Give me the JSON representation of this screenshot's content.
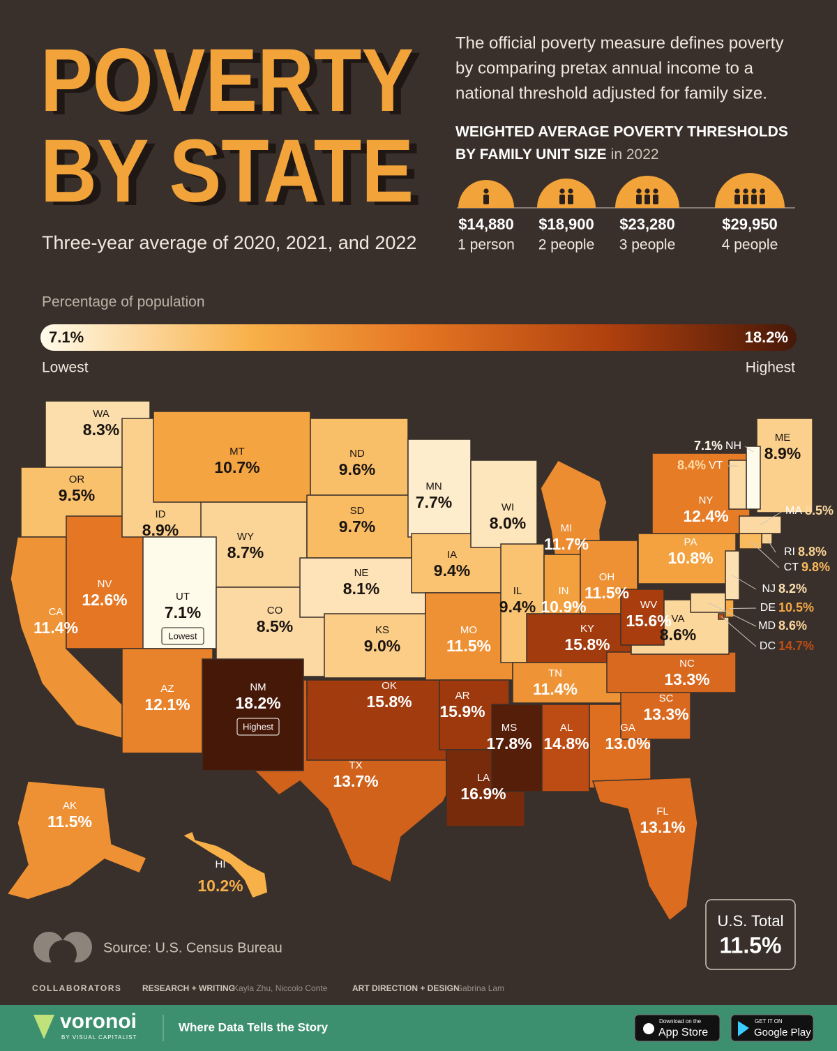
{
  "header": {
    "title_line1": "POVERTY",
    "title_line2": "BY STATE",
    "subtitle": "Three-year average of 2020, 2021, and 2022",
    "description": [
      "The official poverty measure defines poverty",
      "by comparing pretax annual income to a",
      "national threshold adjusted for family size."
    ]
  },
  "thresholds": {
    "heading_line1": "WEIGHTED AVERAGE POVERTY THRESHOLDS",
    "heading_line2": "BY FAMILY UNIT SIZE",
    "heading_suffix": "in 2022",
    "items": [
      {
        "amount": "$14,880",
        "size": "1 person"
      },
      {
        "amount": "$18,900",
        "size": "2 people"
      },
      {
        "amount": "$23,280",
        "size": "3 people"
      },
      {
        "amount": "$29,950",
        "size": "4 people"
      }
    ]
  },
  "legend": {
    "title": "Percentage of population",
    "min": {
      "value": 7.1,
      "label": "7.1%"
    },
    "max": {
      "value": 18.2,
      "label": "18.2%"
    },
    "min_text": "Lowest",
    "max_text": "Highest"
  },
  "states": [
    {
      "code": "WA",
      "value": 8.3,
      "label": "8.3%"
    },
    {
      "code": "OR",
      "value": 9.5,
      "label": "9.5%"
    },
    {
      "code": "CA",
      "value": 11.4,
      "label": "11.4%"
    },
    {
      "code": "NV",
      "value": 12.6,
      "label": "12.6%"
    },
    {
      "code": "ID",
      "value": 8.9,
      "label": "8.9%"
    },
    {
      "code": "MT",
      "value": 10.7,
      "label": "10.7%"
    },
    {
      "code": "WY",
      "value": 8.7,
      "label": "8.7%"
    },
    {
      "code": "UT",
      "value": 7.1,
      "label": "7.1%",
      "note": "Lowest"
    },
    {
      "code": "CO",
      "value": 8.5,
      "label": "8.5%"
    },
    {
      "code": "AZ",
      "value": 12.1,
      "label": "12.1%"
    },
    {
      "code": "TX",
      "value": 13.7,
      "label": "13.7%"
    },
    {
      "code": "NM",
      "value": 18.2,
      "label": "18.2%",
      "note": "Highest"
    },
    {
      "code": "ND",
      "value": 9.6,
      "label": "9.6%"
    },
    {
      "code": "SD",
      "value": 9.7,
      "label": "9.7%"
    },
    {
      "code": "NE",
      "value": 8.1,
      "label": "8.1%"
    },
    {
      "code": "KS",
      "value": 9.0,
      "label": "9.0%"
    },
    {
      "code": "OK",
      "value": 15.8,
      "label": "15.8%"
    },
    {
      "code": "MN",
      "value": 7.7,
      "label": "7.7%"
    },
    {
      "code": "IA",
      "value": 9.4,
      "label": "9.4%"
    },
    {
      "code": "MO",
      "value": 11.5,
      "label": "11.5%"
    },
    {
      "code": "AR",
      "value": 15.9,
      "label": "15.9%"
    },
    {
      "code": "LA",
      "value": 16.9,
      "label": "16.9%"
    },
    {
      "code": "WI",
      "value": 8.0,
      "label": "8.0%"
    },
    {
      "code": "IL",
      "value": 9.4,
      "label": "9.4%"
    },
    {
      "code": "MI",
      "value": 11.7,
      "label": "11.7%"
    },
    {
      "code": "IN",
      "value": 10.9,
      "label": "10.9%"
    },
    {
      "code": "OH",
      "value": 11.5,
      "label": "11.5%"
    },
    {
      "code": "KY",
      "value": 15.8,
      "label": "15.8%"
    },
    {
      "code": "TN",
      "value": 11.4,
      "label": "11.4%"
    },
    {
      "code": "MS",
      "value": 17.8,
      "label": "17.8%"
    },
    {
      "code": "AL",
      "value": 14.8,
      "label": "14.8%"
    },
    {
      "code": "GA",
      "value": 13.0,
      "label": "13.0%"
    },
    {
      "code": "FL",
      "value": 13.1,
      "label": "13.1%"
    },
    {
      "code": "SC",
      "value": 13.3,
      "label": "13.3%"
    },
    {
      "code": "NC",
      "value": 13.3,
      "label": "13.3%"
    },
    {
      "code": "VA",
      "value": 8.6,
      "label": "8.6%"
    },
    {
      "code": "WV",
      "value": 15.6,
      "label": "15.6%"
    },
    {
      "code": "PA",
      "value": 10.8,
      "label": "10.8%"
    },
    {
      "code": "NY",
      "value": 12.4,
      "label": "12.4%"
    },
    {
      "code": "ME",
      "value": 8.9,
      "label": "8.9%"
    },
    {
      "code": "NH",
      "value": 7.1,
      "label": "7.1%"
    },
    {
      "code": "VT",
      "value": 8.4,
      "label": "8.4%"
    },
    {
      "code": "MA",
      "value": 8.5,
      "label": "8.5%"
    },
    {
      "code": "RI",
      "value": 8.8,
      "label": "8.8%"
    },
    {
      "code": "CT",
      "value": 9.8,
      "label": "9.8%"
    },
    {
      "code": "NJ",
      "value": 8.2,
      "label": "8.2%"
    },
    {
      "code": "DE",
      "value": 10.5,
      "label": "10.5%"
    },
    {
      "code": "MD",
      "value": 8.6,
      "label": "8.6%"
    },
    {
      "code": "DC",
      "value": 14.7,
      "label": "14.7%"
    },
    {
      "code": "AK",
      "value": 11.5,
      "label": "11.5%"
    },
    {
      "code": "HI",
      "value": 10.2,
      "label": "10.2%"
    }
  ],
  "us_total": {
    "title": "U.S. Total",
    "label": "11.5%"
  },
  "source": "Source: U.S. Census Bureau",
  "credits": {
    "collaborators": "COLLABORATORS",
    "research_label": "RESEARCH + WRITING",
    "research": "Kayla Zhu, Niccolo Conte",
    "design_label": "ART DIRECTION + DESIGN",
    "design": "Sabrina Lam"
  },
  "footer": {
    "brand": "voronoi",
    "brand_sub": "BY VISUAL CAPITALIST",
    "tagline": "Where Data Tells the Story",
    "app_store": {
      "small": "Download on the",
      "big": "App Store"
    },
    "google_play": {
      "small": "GET IT ON",
      "big": "Google Play"
    }
  }
}
